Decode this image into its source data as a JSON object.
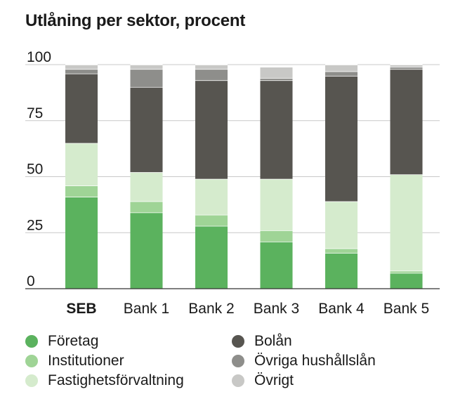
{
  "chart_data": {
    "type": "bar",
    "stacked": true,
    "title": "Utlåning per sektor, procent",
    "categories": [
      "SEB",
      "Bank 1",
      "Bank 2",
      "Bank 3",
      "Bank 4",
      "Bank 5"
    ],
    "highlight_category": "SEB",
    "ylim": [
      0,
      100
    ],
    "yticks": [
      "0",
      "25",
      "50",
      "75",
      "100"
    ],
    "grid": true,
    "legend_position": "bottom",
    "series": [
      {
        "name": "Företag",
        "color": "#5bb25e",
        "values": [
          41,
          34,
          28,
          21,
          16,
          7
        ]
      },
      {
        "name": "Institutioner",
        "color": "#9fd496",
        "values": [
          5,
          5,
          5,
          5,
          2,
          1
        ]
      },
      {
        "name": "Fastighetsförvaltning",
        "color": "#d5ebcd",
        "values": [
          19,
          13,
          16,
          23,
          21,
          43
        ]
      },
      {
        "name": "Bolån",
        "color": "#575550",
        "values": [
          31,
          38,
          44,
          44,
          56,
          47
        ]
      },
      {
        "name": "Övriga hushållslån",
        "color": "#8e8e8b",
        "values": [
          2,
          8,
          5,
          1,
          2,
          1
        ]
      },
      {
        "name": "Övrigt",
        "color": "#c8c8c6",
        "values": [
          2,
          2,
          2,
          5,
          3,
          1
        ]
      }
    ]
  }
}
